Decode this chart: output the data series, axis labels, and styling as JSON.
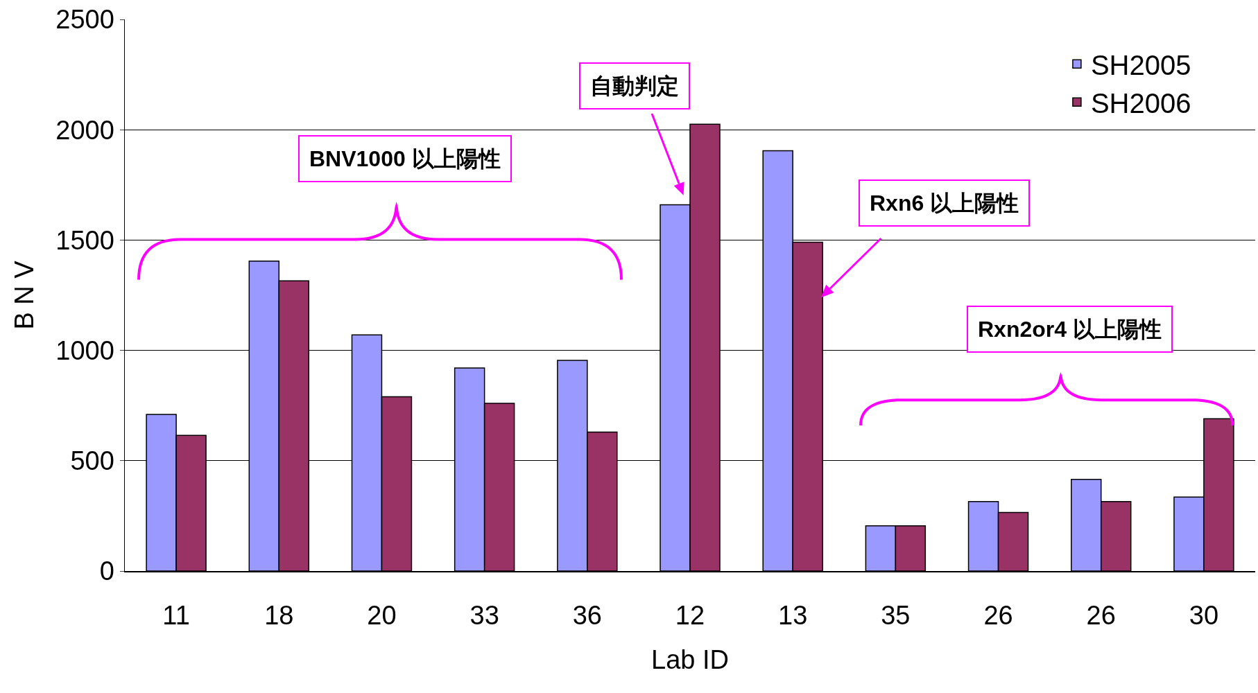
{
  "chart_data": {
    "type": "bar",
    "xlabel": "Lab ID",
    "ylabel": "B N V",
    "categories": [
      "11",
      "18",
      "20",
      "33",
      "36",
      "12",
      "13",
      "35",
      "26",
      "26",
      "30"
    ],
    "series": [
      {
        "name": "SH2005",
        "color": "#9999ff",
        "values": [
          710,
          1405,
          1070,
          920,
          955,
          1660,
          1905,
          205,
          315,
          415,
          335
        ]
      },
      {
        "name": "SH2006",
        "color": "#993366",
        "values": [
          615,
          1315,
          790,
          760,
          630,
          2025,
          1490,
          205,
          265,
          315,
          690
        ]
      }
    ],
    "ylim": [
      0,
      2500
    ],
    "yticks": [
      0,
      500,
      1000,
      1500,
      2000,
      2500
    ],
    "grid": "y",
    "legend": "top right",
    "annotations": [
      "自動判定",
      "BNV1000 以上陽性",
      "Rxn6 以上陽性",
      "Rxn2or4 以上陽性"
    ]
  }
}
